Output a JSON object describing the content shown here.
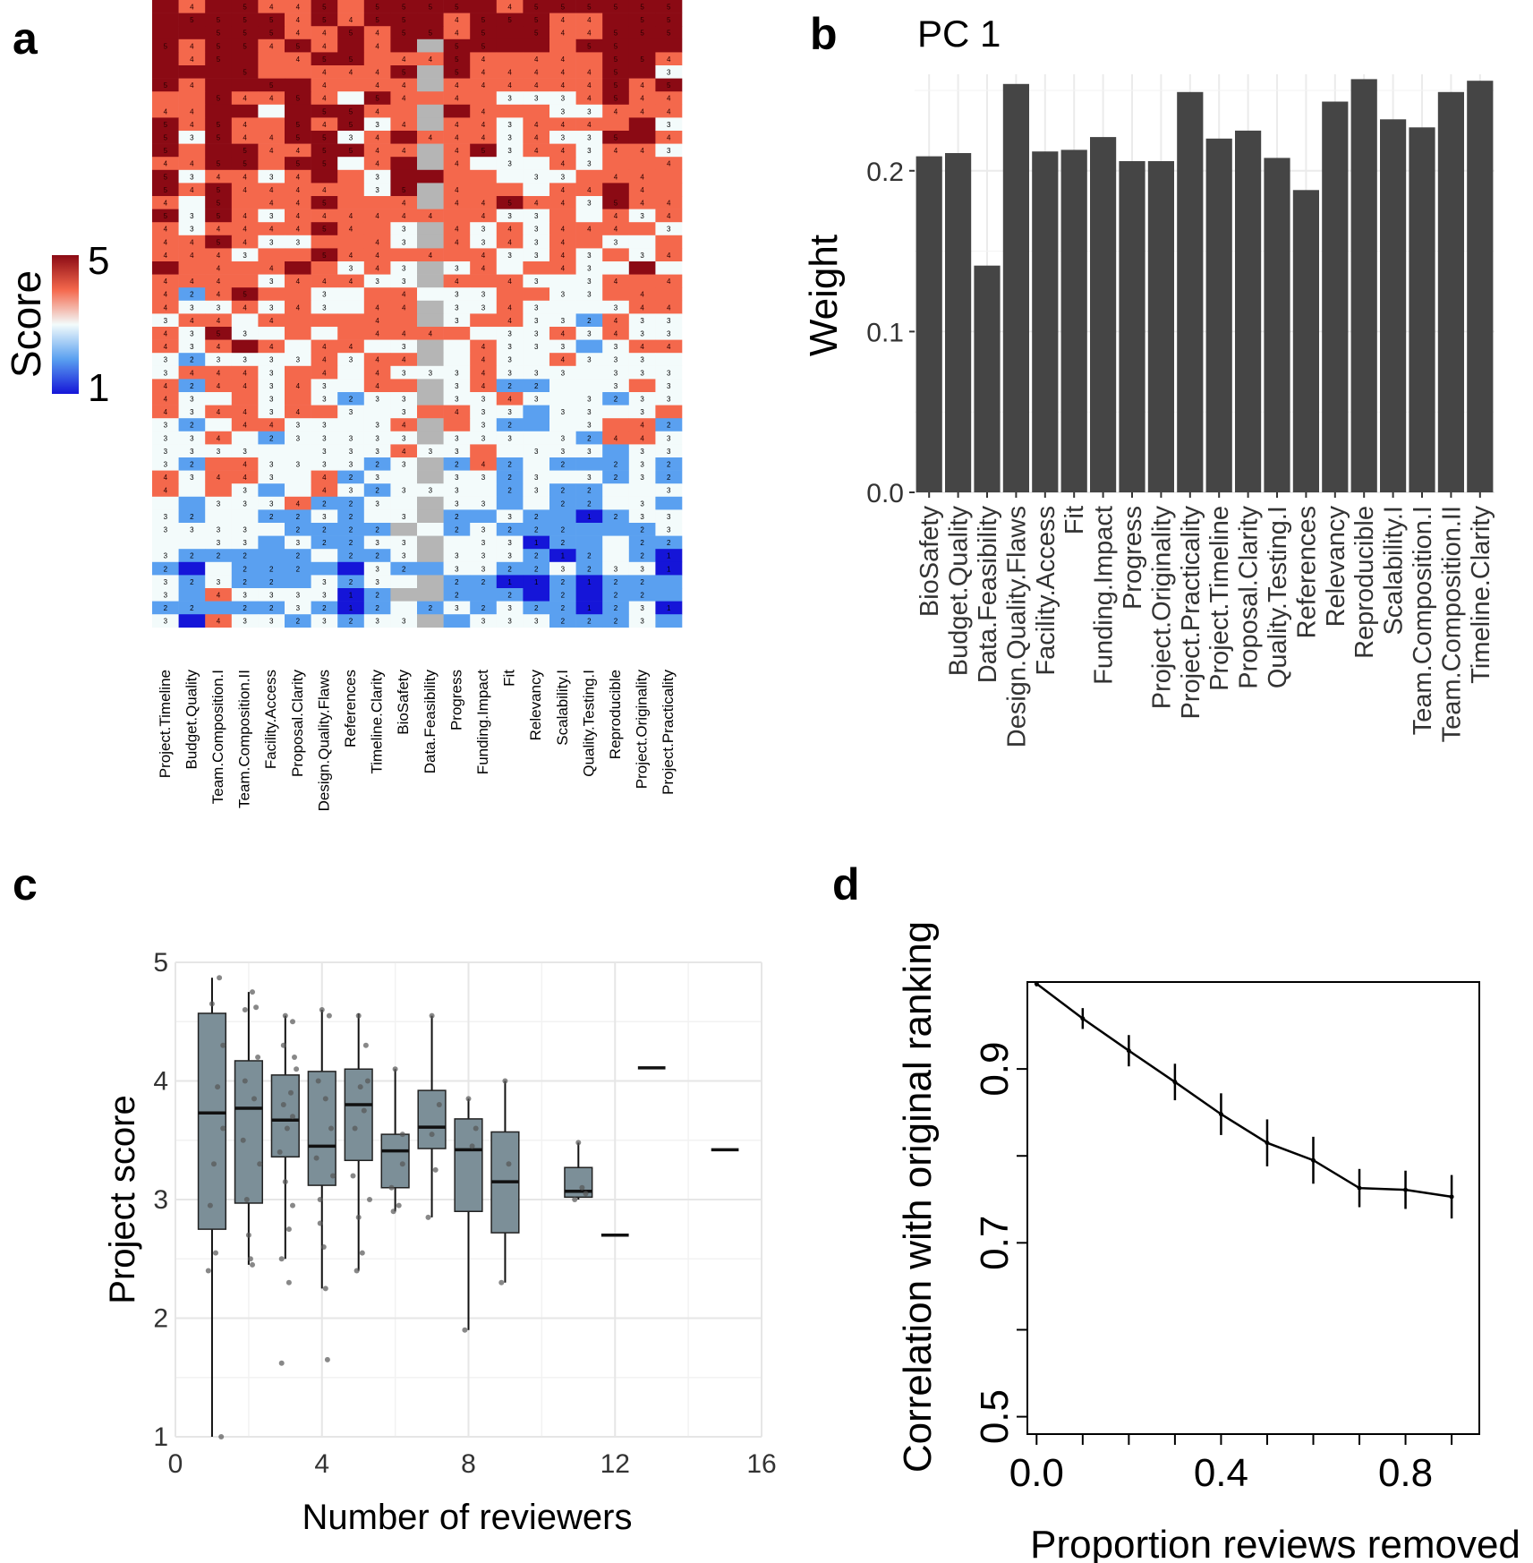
{
  "figure": {
    "panel_labels": [
      "a",
      "b",
      "c",
      "d"
    ]
  },
  "chart_data": [
    {
      "panel": "a",
      "type": "heatmap",
      "columns": [
        "Project.Timeline",
        "Budget.Quality",
        "Team.Composition.I",
        "Team.Composition.II",
        "Facility.Access",
        "Proposal.Clarity",
        "Design.Quality.Flaws",
        "References",
        "Timeline.Clarity",
        "BioSafety",
        "Data.Feasibility",
        "Progress",
        "Funding.Impact",
        "Fit",
        "Relevancy",
        "Scalability.I",
        "Quality.Testing.I",
        "Reproducible",
        "Project.Originality",
        "Project.Practicality"
      ],
      "rows": 48,
      "value_range": [
        1,
        5
      ],
      "legend_title": "Score",
      "legend_ticks": [
        "5",
        "1"
      ],
      "colors": {
        "high": "#8b0a14",
        "mid_high": "#f4684c",
        "mid": "#f3fbfb",
        "mid_low": "#5aa0f0",
        "low": "#1515d8",
        "missing": "#b5b5b5"
      },
      "row_profiles": [
        5,
        5,
        5,
        5,
        4.6,
        4.5,
        4.4,
        4.3,
        4.3,
        4.3,
        4.2,
        4.2,
        4.1,
        4.1,
        4.0,
        4.0,
        3.9,
        3.9,
        3.8,
        3.8,
        3.8,
        3.7,
        3.7,
        3.6,
        3.6,
        3.6,
        3.5,
        3.5,
        3.4,
        3.4,
        3.3,
        3.3,
        3.2,
        3.2,
        3.1,
        3.0,
        3.0,
        2.9,
        2.8,
        2.7,
        2.6,
        2.5,
        2.5,
        2.4,
        2.3,
        2.3,
        2.2,
        2.6
      ]
    },
    {
      "panel": "b",
      "type": "bar",
      "title": "PC 1",
      "ylabel": "Weight",
      "ylim": [
        0,
        0.26
      ],
      "yticks": [
        "0.0",
        "0.1",
        "0.2"
      ],
      "categories": [
        "BioSafety",
        "Budget.Quality",
        "Data.Feasibility",
        "Design.Quality.Flaws",
        "Facility.Access",
        "Fit",
        "Funding.Impact",
        "Progress",
        "Project.Originality",
        "Project.Practicality",
        "Project.Timeline",
        "Proposal.Clarity",
        "Quality.Testing.I",
        "References",
        "Relevancy",
        "Reproducible",
        "Scalability.I",
        "Team.Composition.I",
        "Team.Composition.II",
        "Timeline.Clarity"
      ],
      "values": [
        0.209,
        0.211,
        0.141,
        0.254,
        0.212,
        0.213,
        0.221,
        0.206,
        0.206,
        0.249,
        0.22,
        0.225,
        0.208,
        0.188,
        0.243,
        0.257,
        0.232,
        0.227,
        0.249,
        0.256
      ],
      "bar_color": "#454545"
    },
    {
      "panel": "c",
      "type": "box",
      "xlabel": "Number of reviewers",
      "ylabel": "Project score",
      "xlim": [
        0,
        16
      ],
      "ylim": [
        1,
        5
      ],
      "xticks": [
        "0",
        "4",
        "8",
        "12",
        "16"
      ],
      "yticks": [
        "1",
        "2",
        "3",
        "4",
        "5"
      ],
      "box_color": "#7c8f98",
      "boxes": [
        {
          "x": 1,
          "min": 1.0,
          "q1": 2.75,
          "median": 3.73,
          "q3": 4.57,
          "max": 4.87
        },
        {
          "x": 2,
          "min": 2.45,
          "q1": 2.97,
          "median": 3.77,
          "q3": 4.17,
          "max": 4.75
        },
        {
          "x": 3,
          "min": 2.5,
          "q1": 3.36,
          "median": 3.67,
          "q3": 4.05,
          "max": 4.55
        },
        {
          "x": 4,
          "min": 2.25,
          "q1": 3.12,
          "median": 3.45,
          "q3": 4.08,
          "max": 4.6
        },
        {
          "x": 5,
          "min": 2.4,
          "q1": 3.33,
          "median": 3.8,
          "q3": 4.1,
          "max": 4.57
        },
        {
          "x": 6,
          "min": 2.9,
          "q1": 3.1,
          "median": 3.41,
          "q3": 3.55,
          "max": 4.1
        },
        {
          "x": 7,
          "min": 2.85,
          "q1": 3.43,
          "median": 3.61,
          "q3": 3.92,
          "max": 4.55
        },
        {
          "x": 8,
          "min": 1.9,
          "q1": 2.9,
          "median": 3.42,
          "q3": 3.68,
          "max": 3.85
        },
        {
          "x": 9,
          "min": 2.3,
          "q1": 2.72,
          "median": 3.15,
          "q3": 3.57,
          "max": 4.0
        },
        {
          "x": 11,
          "min": 3.0,
          "q1": 3.02,
          "median": 3.07,
          "q3": 3.27,
          "max": 3.48
        },
        {
          "x": 12,
          "min": 2.7,
          "q1": 2.7,
          "median": 2.7,
          "q3": 2.7,
          "max": 2.7
        },
        {
          "x": 13,
          "min": 4.11,
          "q1": 4.11,
          "median": 4.11,
          "q3": 4.11,
          "max": 4.11
        },
        {
          "x": 15,
          "min": 3.42,
          "q1": 3.42,
          "median": 3.42,
          "q3": 3.42,
          "max": 3.42
        }
      ],
      "points": [
        [
          1.2,
          4.87
        ],
        [
          0.9,
          2.4
        ],
        [
          1.1,
          2.55
        ],
        [
          1.3,
          4.3
        ],
        [
          1.05,
          3.3
        ],
        [
          0.95,
          2.95
        ],
        [
          1.25,
          1.0
        ],
        [
          1.15,
          3.95
        ],
        [
          1.0,
          4.65
        ],
        [
          1.3,
          3.6
        ],
        [
          2.1,
          4.75
        ],
        [
          1.9,
          4.6
        ],
        [
          2.2,
          4.62
        ],
        [
          2.05,
          2.5
        ],
        [
          1.95,
          3.0
        ],
        [
          2.15,
          3.85
        ],
        [
          2.25,
          4.2
        ],
        [
          1.85,
          3.5
        ],
        [
          2.0,
          2.7
        ],
        [
          2.3,
          3.3
        ],
        [
          2.1,
          2.45
        ],
        [
          1.9,
          4.0
        ],
        [
          3.0,
          4.55
        ],
        [
          3.2,
          4.5
        ],
        [
          2.9,
          2.5
        ],
        [
          3.1,
          2.3
        ],
        [
          2.95,
          3.8
        ],
        [
          3.15,
          3.9
        ],
        [
          3.25,
          4.2
        ],
        [
          2.85,
          3.4
        ],
        [
          3.05,
          3.6
        ],
        [
          3.2,
          3.7
        ],
        [
          2.9,
          1.62
        ],
        [
          3.1,
          2.75
        ],
        [
          3.0,
          3.15
        ],
        [
          3.3,
          4.1
        ],
        [
          2.95,
          4.3
        ],
        [
          3.2,
          2.95
        ],
        [
          4.0,
          4.6
        ],
        [
          4.2,
          4.55
        ],
        [
          3.85,
          3.35
        ],
        [
          4.1,
          2.25
        ],
        [
          3.95,
          3.0
        ],
        [
          4.15,
          1.65
        ],
        [
          4.25,
          3.6
        ],
        [
          3.9,
          4.0
        ],
        [
          4.05,
          2.6
        ],
        [
          4.3,
          3.2
        ],
        [
          4.1,
          3.85
        ],
        [
          3.95,
          2.8
        ],
        [
          5.0,
          4.55
        ],
        [
          5.2,
          4.3
        ],
        [
          4.9,
          3.6
        ],
        [
          5.1,
          2.55
        ],
        [
          4.95,
          2.4
        ],
        [
          5.25,
          4.0
        ],
        [
          5.05,
          3.95
        ],
        [
          4.85,
          3.2
        ],
        [
          5.15,
          3.75
        ],
        [
          5.3,
          3.0
        ],
        [
          5.0,
          2.85
        ],
        [
          6.0,
          4.1
        ],
        [
          6.2,
          3.55
        ],
        [
          5.9,
          3.1
        ],
        [
          6.1,
          2.95
        ],
        [
          5.95,
          2.9
        ],
        [
          6.2,
          3.3
        ],
        [
          7.0,
          4.55
        ],
        [
          7.2,
          3.8
        ],
        [
          6.9,
          2.85
        ],
        [
          7.1,
          3.25
        ],
        [
          7.0,
          3.55
        ],
        [
          8.0,
          3.85
        ],
        [
          8.2,
          3.6
        ],
        [
          7.9,
          1.9
        ],
        [
          8.1,
          3.45
        ],
        [
          9.0,
          4.0
        ],
        [
          8.9,
          2.3
        ],
        [
          9.1,
          3.3
        ],
        [
          11.0,
          3.48
        ],
        [
          10.9,
          3.0
        ],
        [
          11.2,
          3.05
        ],
        [
          11.1,
          3.1
        ]
      ]
    },
    {
      "panel": "d",
      "type": "line",
      "xlabel": "Proportion reviews removed",
      "ylabel": "Correlation with original ranking",
      "xlim": [
        -0.02,
        0.96
      ],
      "ylim": [
        0.48,
        1.0
      ],
      "xticks": [
        "0.0",
        "0.4",
        "0.8"
      ],
      "yticks": [
        "0.5",
        "0.7",
        "0.9"
      ],
      "x": [
        0.0,
        0.1,
        0.2,
        0.3,
        0.4,
        0.5,
        0.6,
        0.7,
        0.8,
        0.9
      ],
      "y": [
        0.998,
        0.958,
        0.921,
        0.885,
        0.848,
        0.815,
        0.795,
        0.763,
        0.761,
        0.753
      ],
      "err": [
        0.003,
        0.012,
        0.018,
        0.021,
        0.024,
        0.027,
        0.027,
        0.022,
        0.022,
        0.025
      ]
    }
  ]
}
